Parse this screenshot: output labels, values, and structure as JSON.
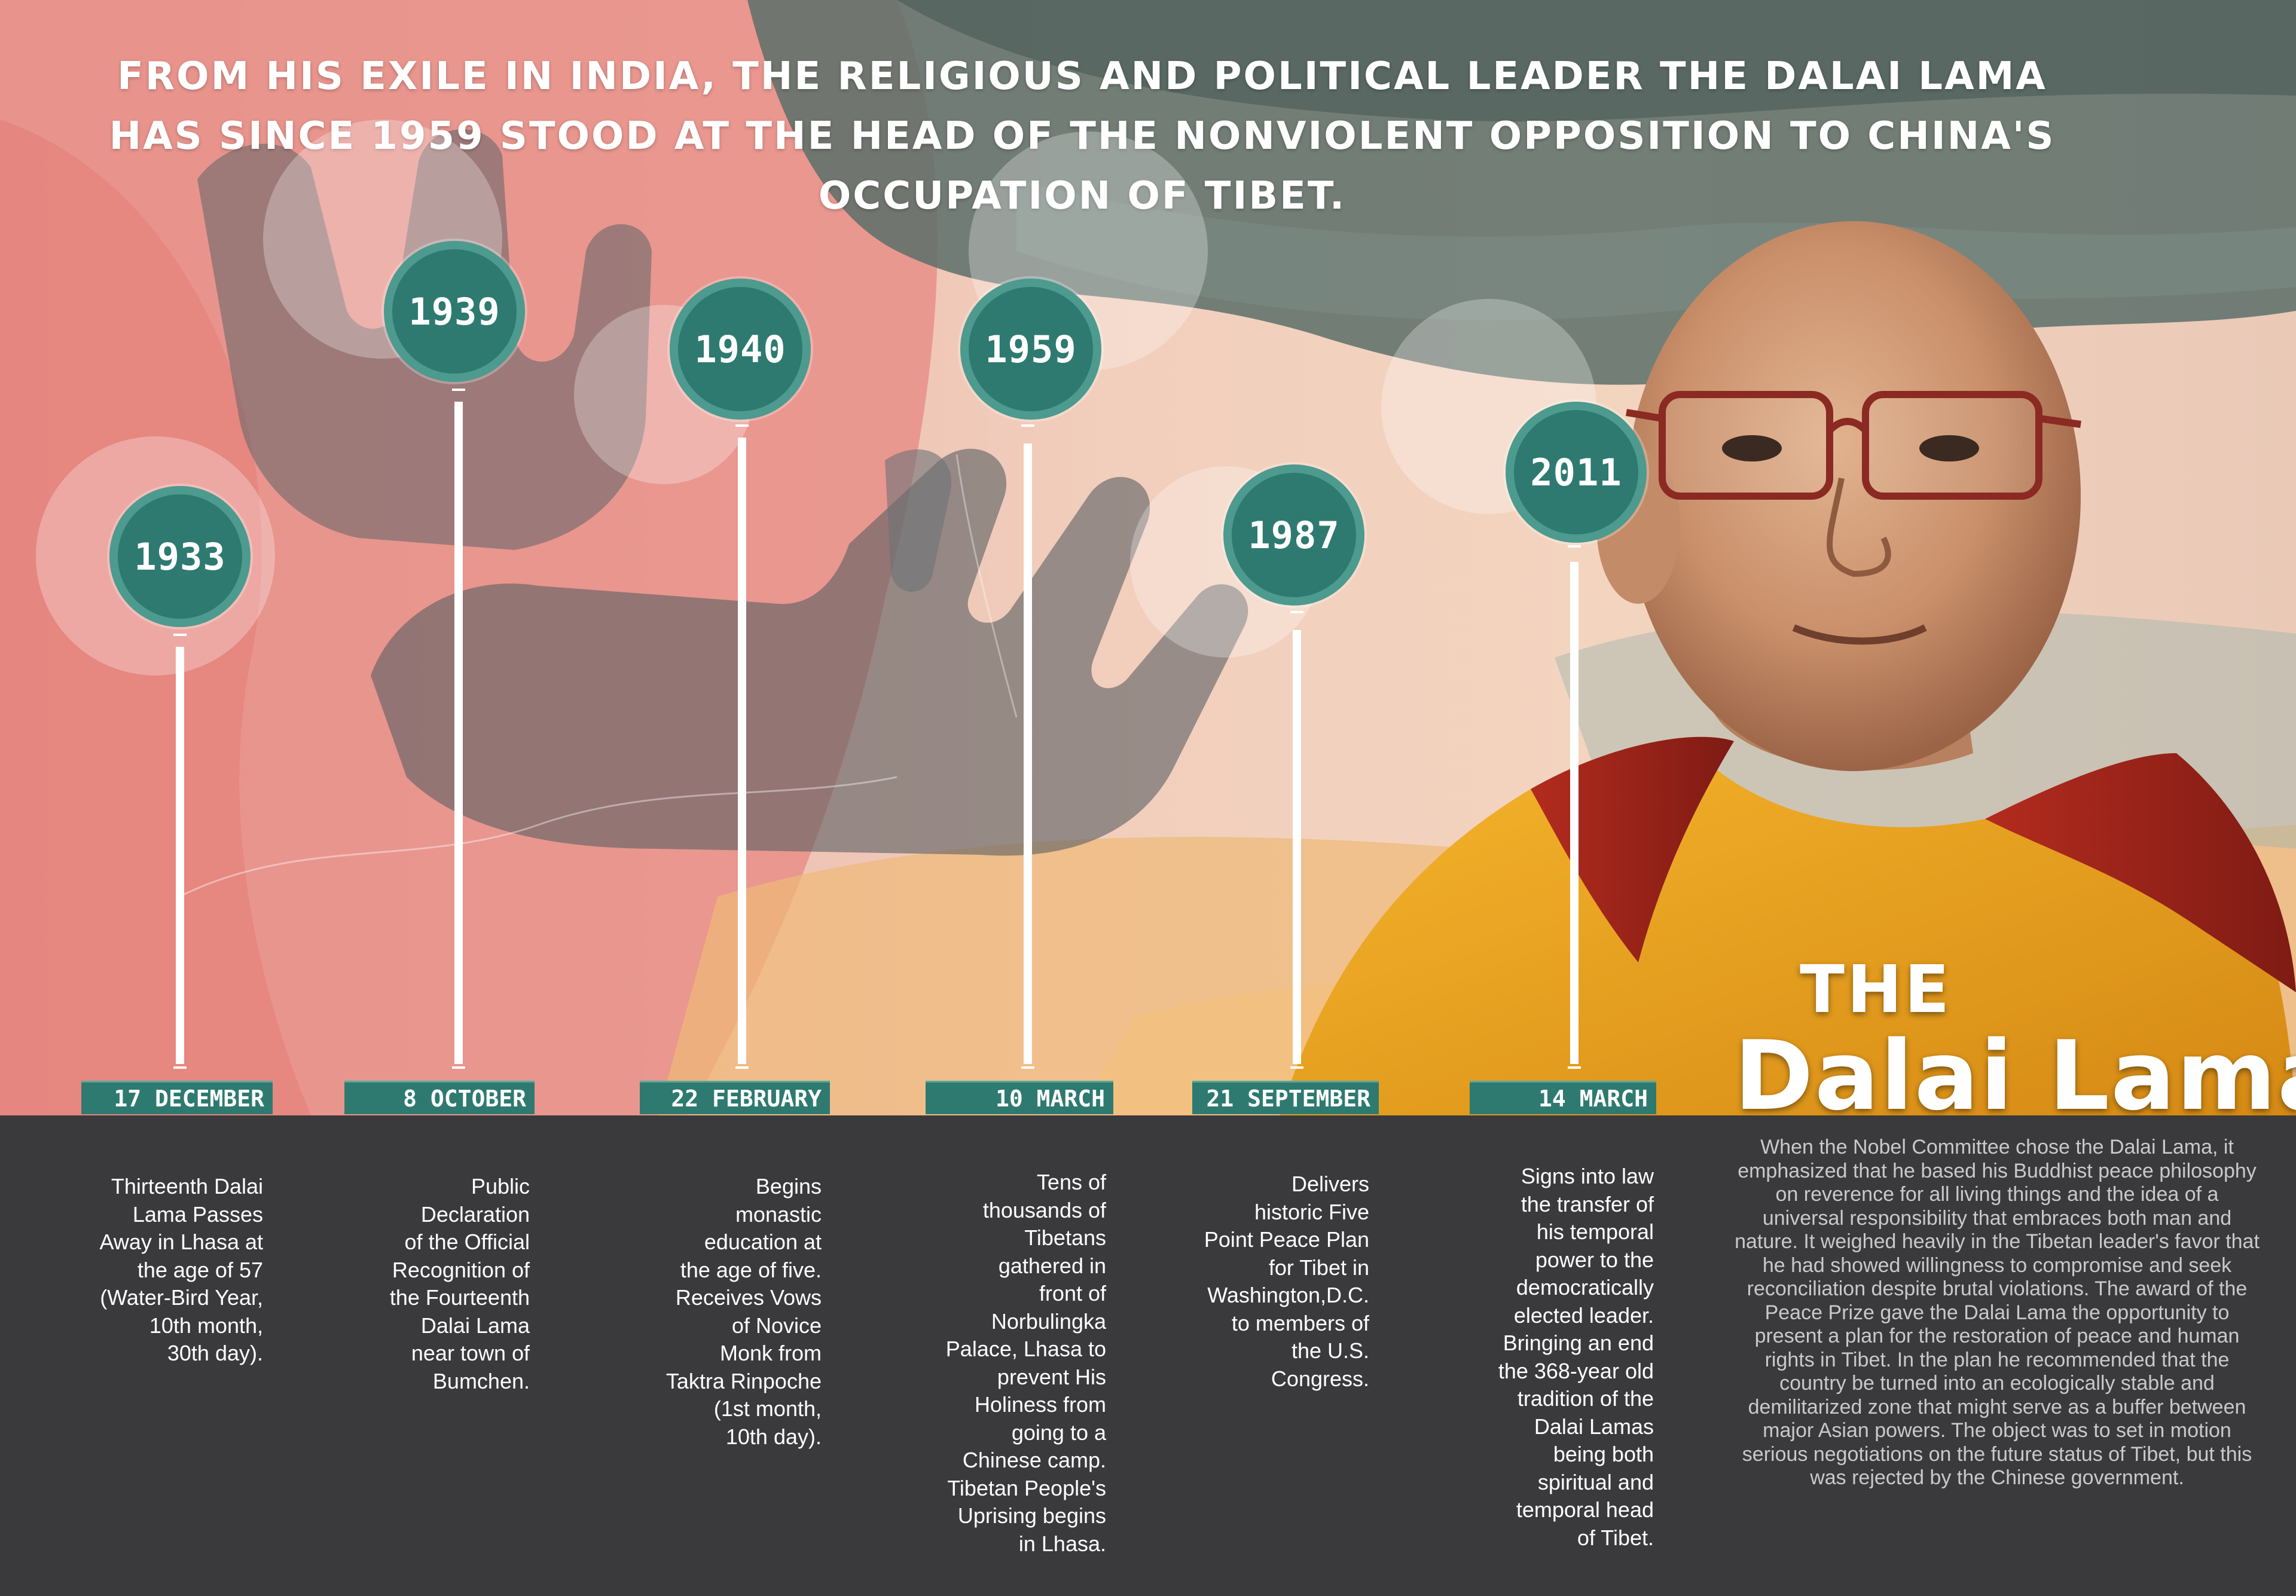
{
  "headline": "From his exile in India, the religious and political leader the Dalai Lama has since 1959 stood at the head of the nonviolent opposition to China's occupation of Tibet.",
  "brand": {
    "the": "THE",
    "name": "Dalai Lama"
  },
  "colors": {
    "teal": "#2e7a70",
    "teal_ring": "#4d9a8f",
    "panel": "#3a3a3c",
    "white": "#ffffff"
  },
  "timeline": [
    {
      "year": "1933",
      "date": "17 DECEMBER",
      "text": "Thirteenth Dalai\nLama Passes\nAway in Lhasa at\nthe age of 57\n(Water-Bird Year,\n10th month,\n30th day)."
    },
    {
      "year": "1939",
      "date": "8 OCTOBER",
      "text": "Public\nDeclaration\nof the Official\nRecognition of\nthe Fourteenth\nDalai Lama\nnear town of\nBumchen."
    },
    {
      "year": "1940",
      "date": "22 FEBRUARY",
      "text": "Begins\nmonastic\neducation at\nthe age of five.\nReceives Vows\nof Novice\nMonk from\nTaktra Rinpoche\n(1st month,\n10th day)."
    },
    {
      "year": "1959",
      "date": "10 MARCH",
      "text": "Tens of\nthousands of\nTibetans\ngathered in\nfront of\nNorbulingka\nPalace, Lhasa to\nprevent His\nHoliness from\ngoing to a\nChinese camp.\nTibetan People's\nUprising begins\nin Lhasa."
    },
    {
      "year": "1987",
      "date": "21 SEPTEMBER",
      "text": "Delivers\nhistoric Five\nPoint Peace Plan\nfor Tibet in\nWashington,D.C.\nto members of\nthe U.S.\nCongress."
    },
    {
      "year": "2011",
      "date": "14 MARCH",
      "text": "Signs into law\nthe transfer of\nhis temporal\npower to the\ndemocratically\nelected leader.\nBringing an end\nthe 368-year old\ntradition of the\nDalai Lamas\nbeing both\nspiritual and\ntemporal head\nof Tibet."
    }
  ],
  "summary": "When the Nobel Committee chose the Dalai Lama, it emphasized that he based his Buddhist peace philosophy on reverence for all living things and the idea of a universal responsibility that embraces both man and nature. It weighed heavily in the Tibetan leader's favor that he had showed willingness to compromise and seek reconciliation despite brutal violations. The award of the Peace Prize gave the Dalai Lama the opportunity to present a plan for the restoration of peace and human rights in Tibet. In the plan he recommended that the country be turned into an ecologically stable and demilitarized zone that might serve as a buffer between major Asian powers. The object was to set in motion serious negotiations on the future status of Tibet, but this was rejected by the Chinese government."
}
